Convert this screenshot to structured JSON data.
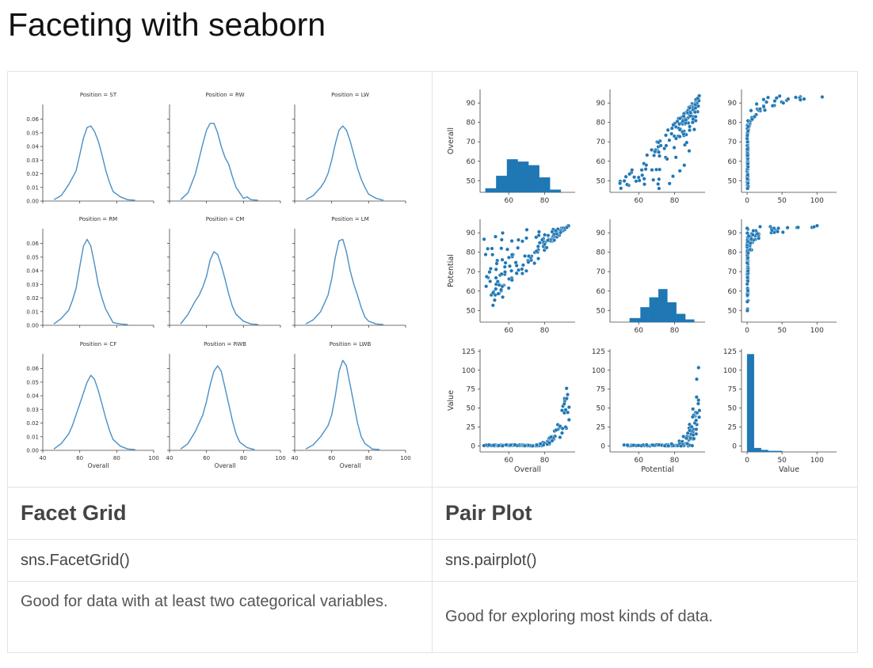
{
  "page": {
    "title": "Faceting with seaborn"
  },
  "table": {
    "columns": [
      {
        "name": "Facet Grid",
        "function": "sns.FacetGrid()",
        "description": "Good for data with at least two categorical variables."
      },
      {
        "name": "Pair Plot",
        "function": "sns.pairplot()",
        "description": "Good for exploring most kinds of data."
      }
    ]
  },
  "chart_data": [
    {
      "type": "line",
      "kind": "facet-grid-kde",
      "xlabel": "Overall",
      "xlim": [
        40,
        100
      ],
      "xticks": [
        40,
        60,
        80,
        100
      ],
      "ylim": [
        0,
        0.065
      ],
      "yticks": [
        "0.00",
        "0.01",
        "0.02",
        "0.03",
        "0.04",
        "0.05",
        "0.06"
      ],
      "color": "#4a8fc4",
      "panels": [
        {
          "title": "Position = ST",
          "x": [
            46,
            50,
            54,
            58,
            60,
            62,
            64,
            66,
            68,
            70,
            72,
            74,
            76,
            78,
            82,
            86,
            90
          ],
          "y": [
            0.001,
            0.004,
            0.012,
            0.022,
            0.034,
            0.046,
            0.054,
            0.055,
            0.051,
            0.044,
            0.034,
            0.023,
            0.014,
            0.007,
            0.003,
            0.001,
            0.0005
          ]
        },
        {
          "title": "Position = RW",
          "x": [
            46,
            50,
            54,
            58,
            60,
            62,
            64,
            66,
            68,
            70,
            72,
            74,
            76,
            80,
            82,
            84,
            88
          ],
          "y": [
            0.001,
            0.006,
            0.02,
            0.042,
            0.052,
            0.057,
            0.057,
            0.05,
            0.04,
            0.032,
            0.027,
            0.018,
            0.01,
            0.002,
            0.003,
            0.001,
            0.0005
          ]
        },
        {
          "title": "Position = LW",
          "x": [
            46,
            50,
            54,
            56,
            58,
            60,
            62,
            64,
            66,
            68,
            70,
            72,
            74,
            76,
            78,
            80,
            84,
            88
          ],
          "y": [
            0.001,
            0.004,
            0.01,
            0.014,
            0.02,
            0.03,
            0.042,
            0.052,
            0.055,
            0.052,
            0.044,
            0.034,
            0.024,
            0.016,
            0.01,
            0.005,
            0.002,
            0.0005
          ]
        },
        {
          "title": "Position = RM",
          "x": [
            46,
            50,
            54,
            56,
            58,
            60,
            62,
            64,
            66,
            68,
            70,
            72,
            74,
            76,
            78,
            82,
            86
          ],
          "y": [
            0.001,
            0.005,
            0.011,
            0.018,
            0.027,
            0.043,
            0.058,
            0.063,
            0.058,
            0.045,
            0.03,
            0.02,
            0.012,
            0.007,
            0.002,
            0.001,
            0.0005
          ]
        },
        {
          "title": "Position = CM",
          "x": [
            46,
            50,
            54,
            56,
            58,
            60,
            62,
            64,
            66,
            68,
            70,
            72,
            74,
            76,
            80,
            84,
            88
          ],
          "y": [
            0.001,
            0.008,
            0.018,
            0.022,
            0.028,
            0.036,
            0.048,
            0.054,
            0.052,
            0.044,
            0.034,
            0.023,
            0.014,
            0.008,
            0.003,
            0.001,
            0.0005
          ]
        },
        {
          "title": "Position = LM",
          "x": [
            46,
            50,
            54,
            58,
            60,
            62,
            64,
            66,
            68,
            70,
            72,
            74,
            76,
            78,
            80,
            84,
            88
          ],
          "y": [
            0.001,
            0.004,
            0.01,
            0.022,
            0.034,
            0.05,
            0.062,
            0.063,
            0.054,
            0.04,
            0.03,
            0.022,
            0.013,
            0.006,
            0.003,
            0.001,
            0.0005
          ]
        },
        {
          "title": "Position = CF",
          "x": [
            46,
            50,
            54,
            56,
            58,
            60,
            62,
            64,
            66,
            68,
            70,
            72,
            74,
            76,
            78,
            82,
            86,
            90
          ],
          "y": [
            0.001,
            0.005,
            0.012,
            0.018,
            0.026,
            0.034,
            0.042,
            0.05,
            0.055,
            0.052,
            0.044,
            0.034,
            0.024,
            0.015,
            0.008,
            0.003,
            0.001,
            0.0005
          ]
        },
        {
          "title": "Position = RWB",
          "x": [
            46,
            50,
            54,
            58,
            60,
            62,
            64,
            66,
            68,
            70,
            72,
            74,
            76,
            78,
            82,
            86
          ],
          "y": [
            0.001,
            0.005,
            0.014,
            0.026,
            0.036,
            0.048,
            0.058,
            0.062,
            0.058,
            0.046,
            0.034,
            0.022,
            0.012,
            0.006,
            0.002,
            0.0005
          ]
        },
        {
          "title": "Position = LWB",
          "x": [
            46,
            50,
            54,
            58,
            60,
            62,
            64,
            66,
            68,
            70,
            72,
            74,
            76,
            78,
            82,
            86
          ],
          "y": [
            0.001,
            0.004,
            0.01,
            0.018,
            0.026,
            0.04,
            0.058,
            0.066,
            0.062,
            0.048,
            0.034,
            0.02,
            0.01,
            0.005,
            0.001,
            0.0005
          ]
        }
      ]
    },
    {
      "type": "scatter",
      "kind": "pairplot",
      "variables": [
        "Overall",
        "Potential",
        "Value"
      ],
      "axes": {
        "Overall": {
          "lim": [
            44,
            97
          ],
          "ticks": [
            50,
            60,
            70,
            80,
            90
          ],
          "xticks": [
            60,
            80
          ]
        },
        "Potential": {
          "lim": [
            44,
            97
          ],
          "ticks": [
            50,
            60,
            70,
            80,
            90
          ],
          "xticks": [
            60,
            80
          ]
        },
        "Value": {
          "lim": [
            -8,
            128
          ],
          "ticks": [
            0,
            25,
            50,
            75,
            100,
            125
          ],
          "xticks": [
            0,
            50,
            100
          ]
        }
      },
      "color": "#1f77b4",
      "histograms": {
        "Overall": {
          "bins": [
            [
              47,
              53,
              0.12
            ],
            [
              53,
              59,
              0.5
            ],
            [
              59,
              65,
              1
            ],
            [
              65,
              71,
              0.93
            ],
            [
              71,
              77,
              0.82
            ],
            [
              77,
              83,
              0.45
            ],
            [
              83,
              89,
              0.08
            ]
          ]
        },
        "Potential": {
          "bins": [
            [
              55,
              61,
              0.12
            ],
            [
              61,
              66,
              0.45
            ],
            [
              66,
              71,
              0.75
            ],
            [
              71,
              76,
              1
            ],
            [
              76,
              81,
              0.6
            ],
            [
              81,
              86,
              0.25
            ],
            [
              86,
              91,
              0.08
            ]
          ]
        },
        "Value": {
          "bins": [
            [
              0,
              10,
              1
            ],
            [
              10,
              20,
              0.04
            ],
            [
              20,
              30,
              0.02
            ],
            [
              30,
              40,
              0.01
            ],
            [
              40,
              50,
              0.01
            ]
          ]
        }
      }
    }
  ]
}
